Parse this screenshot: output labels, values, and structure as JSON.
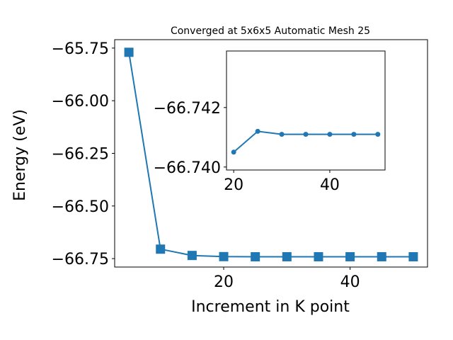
{
  "chart_data": [
    {
      "type": "line",
      "title": "Converged at 5x6x5 Automatic Mesh 25",
      "xlabel": "Increment in K point",
      "ylabel": "Energy (eV)",
      "marker": "square",
      "color": "#1f77b4",
      "x": [
        5,
        10,
        15,
        20,
        25,
        30,
        35,
        40,
        45,
        50
      ],
      "series": [
        {
          "values": [
            -65.77,
            -66.705,
            -66.735,
            -66.7405,
            -66.7412,
            -66.7411,
            -66.7411,
            -66.7411,
            -66.7411,
            -66.7411
          ]
        }
      ],
      "xlim": [
        2.75,
        52.25
      ],
      "ylim": [
        -66.79,
        -65.71
      ],
      "xticks": [
        20,
        40
      ],
      "xtick_labels": [
        "20",
        "40"
      ],
      "yticks": [
        -65.75,
        -66.0,
        -66.25,
        -66.5,
        -66.75
      ],
      "ytick_labels": [
        "−65.75",
        "−66.00",
        "−66.25",
        "−66.50",
        "−66.75"
      ],
      "grid": false
    },
    {
      "type": "line",
      "inset": true,
      "marker": "circle",
      "color": "#1f77b4",
      "x": [
        20,
        25,
        30,
        35,
        40,
        45,
        50
      ],
      "series": [
        {
          "values": [
            -66.7405,
            -66.7412,
            -66.7411,
            -66.7411,
            -66.7411,
            -66.7411,
            -66.7411
          ]
        }
      ],
      "xlim": [
        18.5,
        51.5
      ],
      "ylim": [
        -66.7399,
        -66.7439
      ],
      "xticks": [
        20,
        40
      ],
      "xtick_labels": [
        "20",
        "40"
      ],
      "yticks": [
        -66.742,
        -66.74
      ],
      "ytick_labels": [
        "−66.742",
        "−66.740"
      ],
      "grid": false
    }
  ]
}
